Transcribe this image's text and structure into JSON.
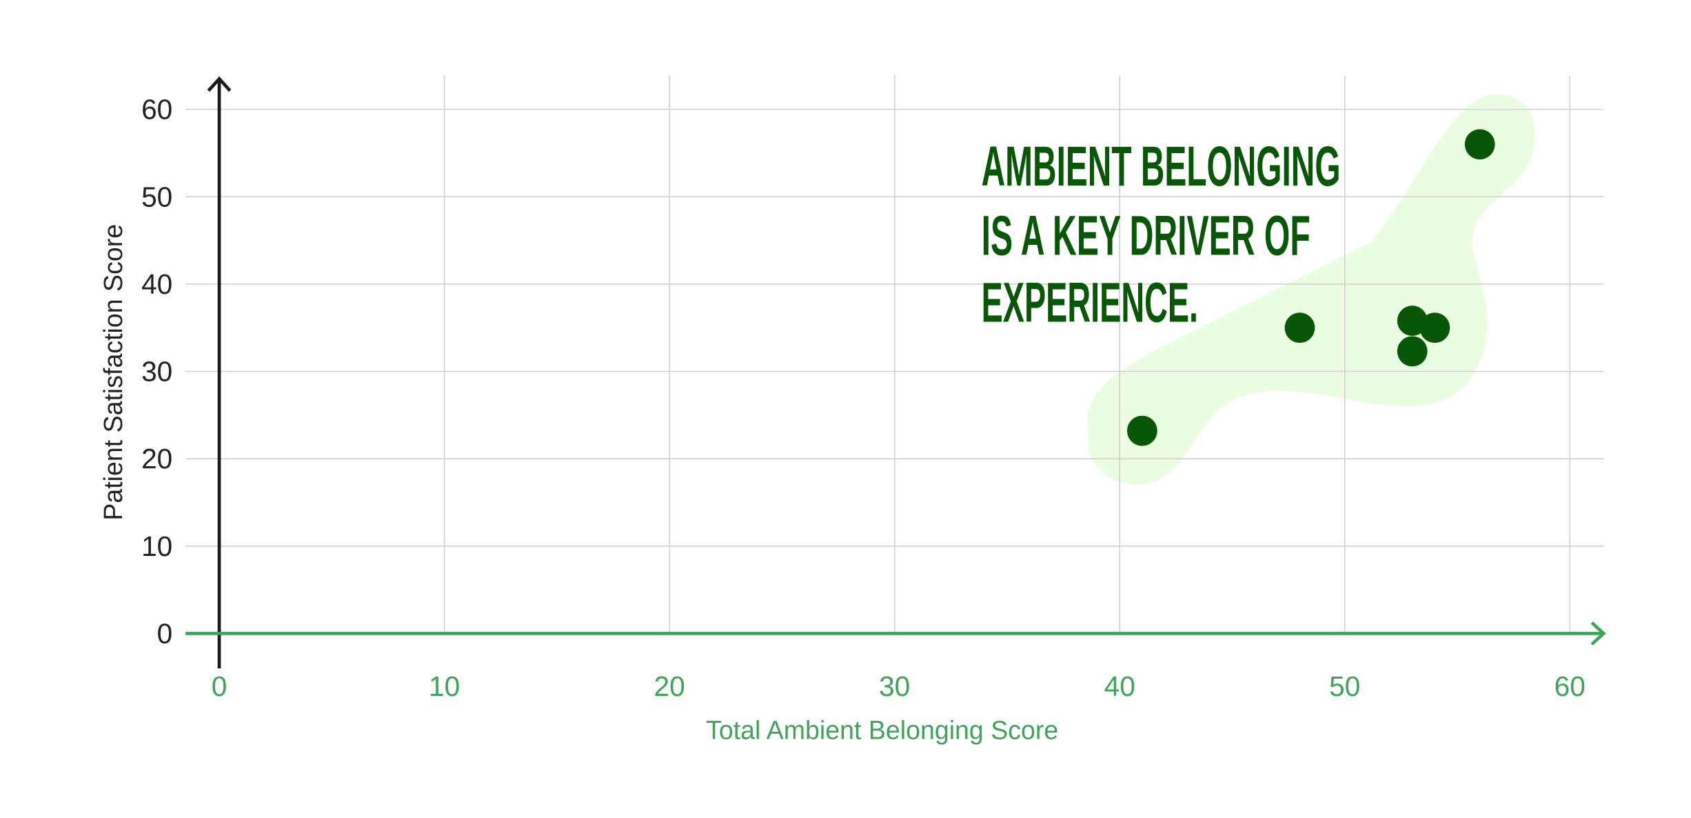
{
  "chart_data": {
    "type": "scatter",
    "annotation": [
      "AMBIENT BELONGING",
      "IS A KEY DRIVER OF",
      "EXPERIENCE."
    ],
    "x_label": "Total Ambient Belonging Score",
    "y_label": "Patient Satisfaction Score",
    "x": [
      41,
      48,
      53,
      54,
      53,
      56
    ],
    "values": [
      23.2,
      35,
      35.8,
      35,
      32.3,
      56
    ],
    "color": "#075707",
    "x_axis_color": "#3fa35a",
    "y_axis_color": "#1a1a1a",
    "xlim": [
      -1.5,
      61.5
    ],
    "ylim": [
      -4,
      63.5
    ],
    "xticks": [
      0,
      10,
      20,
      30,
      40,
      50,
      60
    ],
    "yticks": [
      0,
      10,
      20,
      30,
      40,
      50,
      60
    ],
    "grid": true
  }
}
